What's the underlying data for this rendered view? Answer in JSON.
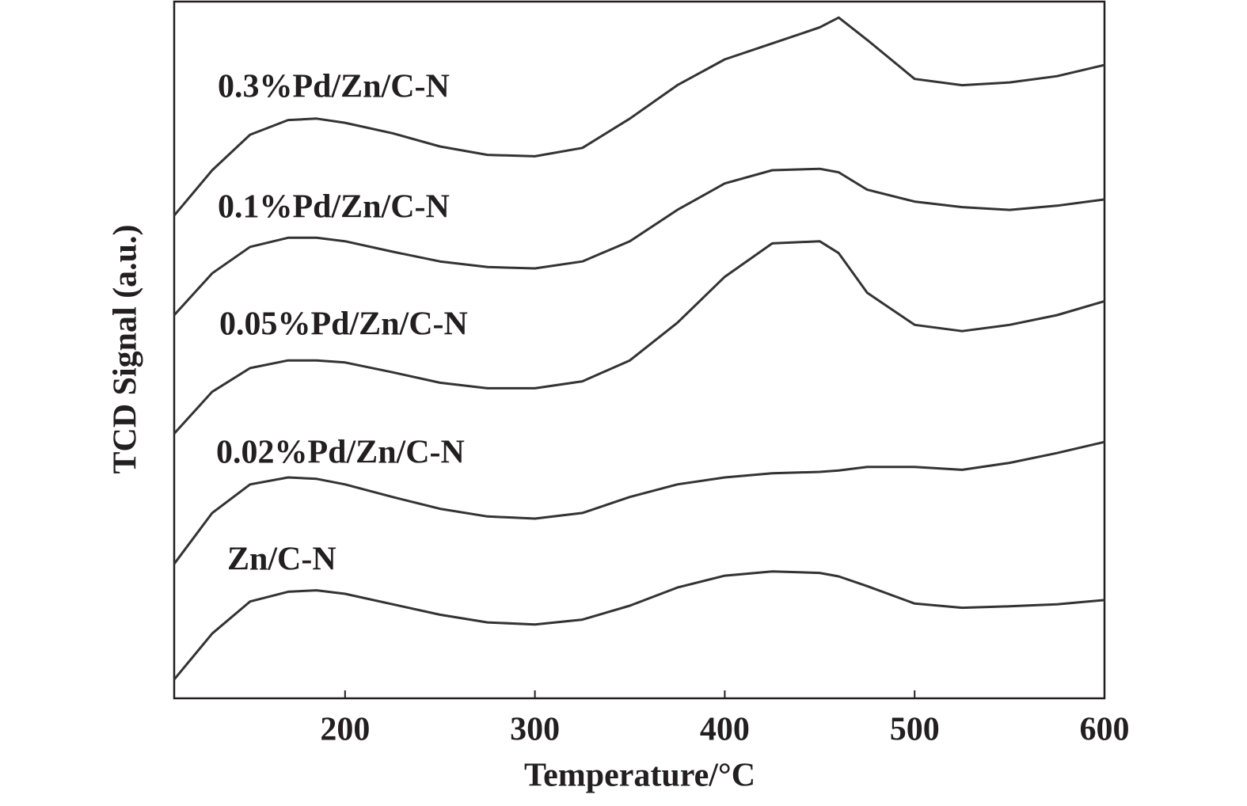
{
  "chart_data": {
    "type": "line",
    "x_label": "Temperature/°C",
    "y_label": "TCD Signal (a.u.)",
    "x": [
      110,
      130,
      150,
      170,
      185,
      200,
      225,
      250,
      275,
      300,
      325,
      350,
      375,
      400,
      425,
      450,
      460,
      475,
      500,
      525,
      550,
      575,
      600
    ],
    "xlim": [
      110,
      600
    ],
    "xticks": [
      200,
      300,
      400,
      500,
      600
    ],
    "ylim": [
      0,
      100
    ],
    "grid": false,
    "series": [
      {
        "name": "0.3%Pd/Zn/C-N",
        "color": "#333333",
        "values": [
          69.3,
          75.8,
          80.9,
          83.0,
          83.2,
          82.6,
          81.1,
          79.2,
          78.0,
          77.8,
          79.0,
          83.2,
          88.0,
          91.7,
          94.0,
          96.3,
          97.7,
          94.5,
          88.9,
          88.0,
          88.4,
          89.3,
          90.9
        ]
      },
      {
        "name": "0.1%Pd/Zn/C-N",
        "color": "#333333",
        "values": [
          55.0,
          61.0,
          64.8,
          66.1,
          66.1,
          65.6,
          64.1,
          62.7,
          61.9,
          61.7,
          62.7,
          65.6,
          70.1,
          73.9,
          75.8,
          76.0,
          75.5,
          73.0,
          71.3,
          70.5,
          70.1,
          70.7,
          71.6
        ]
      },
      {
        "name": "0.05%Pd/Zn/C-N",
        "color": "#333333",
        "values": [
          38.0,
          44.0,
          47.4,
          48.5,
          48.5,
          48.2,
          46.8,
          45.3,
          44.5,
          44.5,
          45.5,
          48.5,
          53.9,
          60.5,
          65.3,
          65.6,
          63.9,
          58.2,
          53.6,
          52.7,
          53.6,
          55.0,
          57.0
        ]
      },
      {
        "name": "0.02%Pd/Zn/C-N",
        "color": "#333333",
        "values": [
          19.3,
          26.6,
          30.7,
          31.7,
          31.5,
          30.7,
          28.9,
          27.2,
          26.1,
          25.8,
          26.6,
          28.9,
          30.7,
          31.7,
          32.3,
          32.5,
          32.7,
          33.2,
          33.2,
          32.8,
          33.8,
          35.2,
          36.8
        ]
      },
      {
        "name": "Zn/C-N",
        "color": "#333333",
        "values": [
          2.7,
          9.3,
          13.9,
          15.3,
          15.5,
          15.0,
          13.5,
          12.0,
          10.9,
          10.6,
          11.3,
          13.3,
          15.9,
          17.6,
          18.2,
          18.0,
          17.5,
          16.1,
          13.6,
          13.0,
          13.2,
          13.5,
          14.1
        ]
      }
    ]
  }
}
